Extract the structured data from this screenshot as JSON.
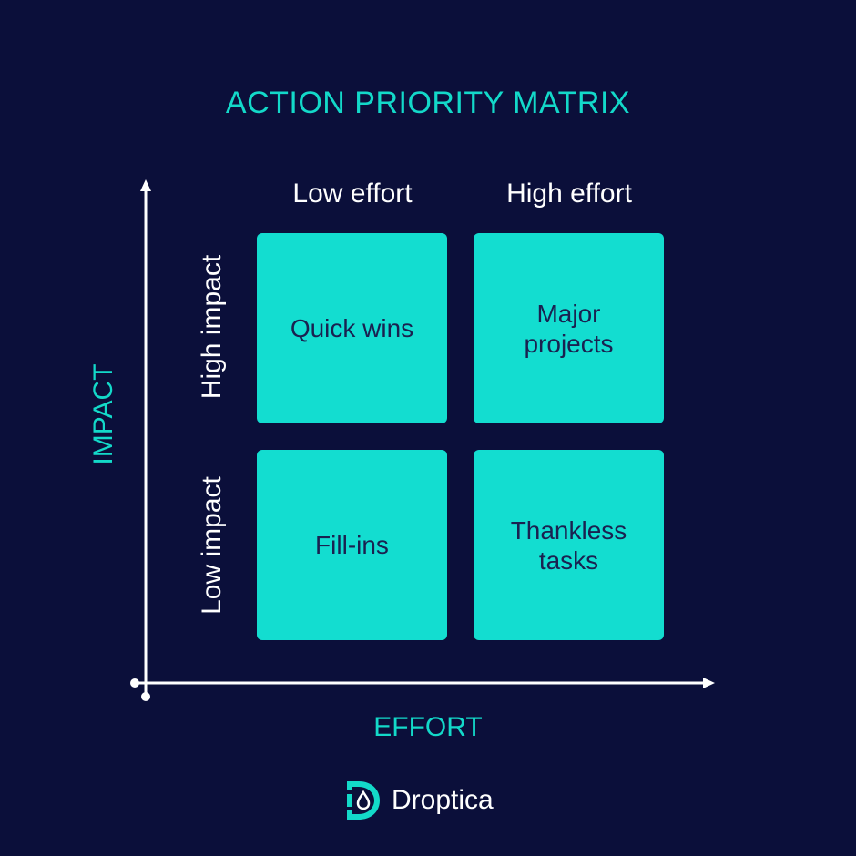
{
  "title": "ACTION PRIORITY MATRIX",
  "axes": {
    "y_title": "IMPACT",
    "x_title": "EFFORT"
  },
  "columns": [
    "Low effort",
    "High effort"
  ],
  "rows": [
    "High impact",
    "Low impact"
  ],
  "quadrants": {
    "quick_wins": "Quick wins",
    "major_projects": "Major projects",
    "fill_ins": "Fill-ins",
    "thankless_tasks": "Thankless tasks"
  },
  "brand": {
    "name": "Droptica",
    "logo_icon": "droptica-logo-icon"
  },
  "colors": {
    "background": "#0b0f3a",
    "accent": "#13d9c9",
    "quadrant_fill": "#13ddd0",
    "quadrant_text": "#1a2150"
  }
}
